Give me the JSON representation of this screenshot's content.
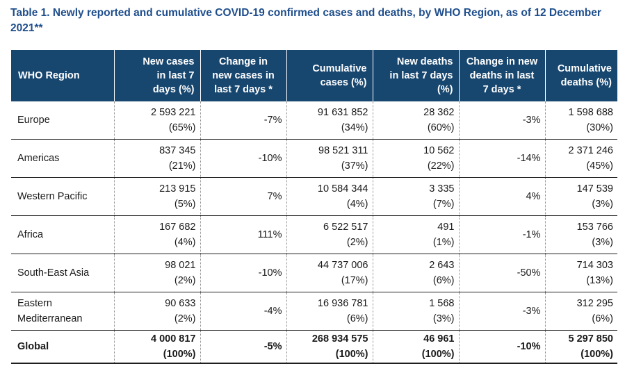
{
  "title": "Table 1. Newly reported and cumulative COVID-19 confirmed cases and deaths, by WHO Region, as of 12 December 2021**",
  "headers": {
    "region": "WHO Region",
    "new_cases": [
      "New cases",
      "in  last 7",
      "days (%)"
    ],
    "change_cases": [
      "Change in",
      "new cases in",
      "last 7 days *"
    ],
    "cum_cases": [
      "Cumulative",
      "cases (%)"
    ],
    "new_deaths": [
      "New deaths",
      "in  last 7 days",
      "(%)"
    ],
    "change_deaths": [
      "Change in new",
      "deaths in last",
      "7 days *"
    ],
    "cum_deaths": [
      "Cumulative",
      "deaths (%)"
    ]
  },
  "rows": [
    {
      "region": [
        "Europe"
      ],
      "new_cases": "2 593 221",
      "new_cases_pct": "(65%)",
      "change_cases": "-7%",
      "cum_cases": "91 631 852",
      "cum_cases_pct": "(34%)",
      "new_deaths": "28 362",
      "new_deaths_pct": "(60%)",
      "change_deaths": "-3%",
      "cum_deaths": "1 598 688",
      "cum_deaths_pct": "(30%)"
    },
    {
      "region": [
        "Americas"
      ],
      "new_cases": "837 345",
      "new_cases_pct": "(21%)",
      "change_cases": "-10%",
      "cum_cases": "98 521 311",
      "cum_cases_pct": "(37%)",
      "new_deaths": "10 562",
      "new_deaths_pct": "(22%)",
      "change_deaths": "-14%",
      "cum_deaths": "2 371 246",
      "cum_deaths_pct": "(45%)"
    },
    {
      "region": [
        "Western Pacific"
      ],
      "new_cases": "213 915",
      "new_cases_pct": "(5%)",
      "change_cases": "7%",
      "cum_cases": "10 584 344",
      "cum_cases_pct": "(4%)",
      "new_deaths": "3 335",
      "new_deaths_pct": "(7%)",
      "change_deaths": "4%",
      "cum_deaths": "147 539",
      "cum_deaths_pct": "(3%)"
    },
    {
      "region": [
        "Africa"
      ],
      "new_cases": "167 682",
      "new_cases_pct": "(4%)",
      "change_cases": "111%",
      "cum_cases": "6 522 517",
      "cum_cases_pct": "(2%)",
      "new_deaths": "491",
      "new_deaths_pct": "(1%)",
      "change_deaths": "-1%",
      "cum_deaths": "153 766",
      "cum_deaths_pct": "(3%)"
    },
    {
      "region": [
        "South-East Asia"
      ],
      "new_cases": "98 021",
      "new_cases_pct": "(2%)",
      "change_cases": "-10%",
      "cum_cases": "44 737 006",
      "cum_cases_pct": "(17%)",
      "new_deaths": "2 643",
      "new_deaths_pct": "(6%)",
      "change_deaths": "-50%",
      "cum_deaths": "714 303",
      "cum_deaths_pct": "(13%)"
    },
    {
      "region": [
        "Eastern",
        "Mediterranean"
      ],
      "new_cases": "90 633",
      "new_cases_pct": "(2%)",
      "change_cases": "-4%",
      "cum_cases": "16 936 781",
      "cum_cases_pct": "(6%)",
      "new_deaths": "1 568",
      "new_deaths_pct": "(3%)",
      "change_deaths": "-3%",
      "cum_deaths": "312 295",
      "cum_deaths_pct": "(6%)"
    }
  ],
  "global": {
    "region": "Global",
    "new_cases": "4 000 817",
    "new_cases_pct": "(100%)",
    "change_cases": "-5%",
    "cum_cases": "268 934 575",
    "cum_cases_pct": "(100%)",
    "new_deaths": "46 961",
    "new_deaths_pct": "(100%)",
    "change_deaths": "-10%",
    "cum_deaths": "5 297 850",
    "cum_deaths_pct": "(100%)"
  }
}
